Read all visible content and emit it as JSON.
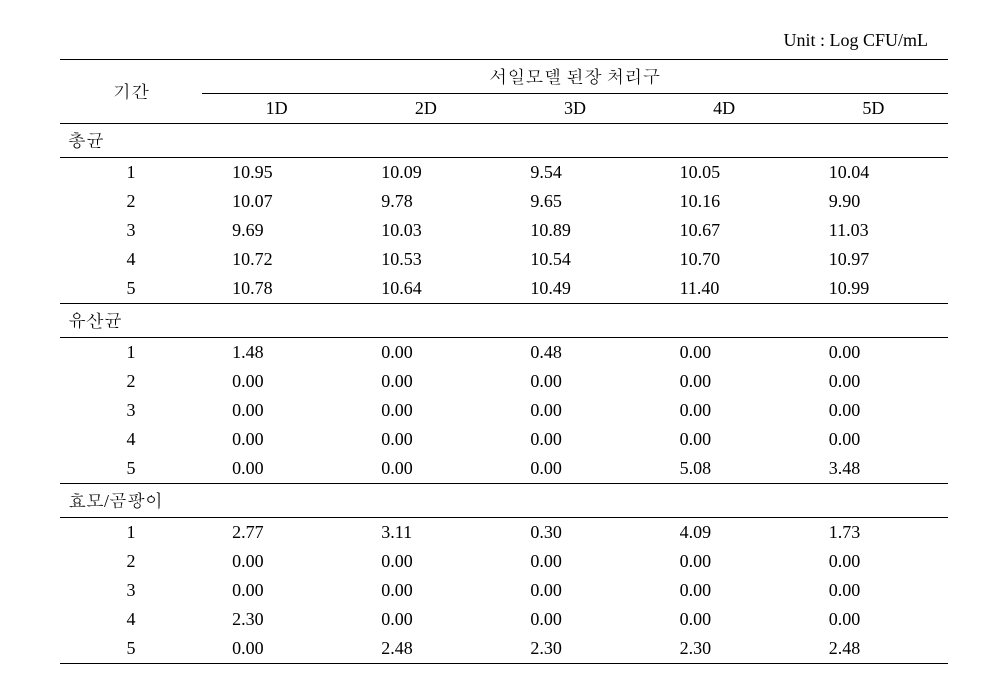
{
  "unit_label": "Unit : Log CFU/mL",
  "header": {
    "period": "기간",
    "group_header": "서일모델 된장 처리구",
    "cols": [
      "1D",
      "2D",
      "3D",
      "4D",
      "5D"
    ]
  },
  "sections": [
    {
      "name": "총균",
      "rows": [
        {
          "p": "1",
          "v": [
            "10.95",
            "10.09",
            "9.54",
            "10.05",
            "10.04"
          ]
        },
        {
          "p": "2",
          "v": [
            "10.07",
            "9.78",
            "9.65",
            "10.16",
            "9.90"
          ]
        },
        {
          "p": "3",
          "v": [
            "9.69",
            "10.03",
            "10.89",
            "10.67",
            "11.03"
          ]
        },
        {
          "p": "4",
          "v": [
            "10.72",
            "10.53",
            "10.54",
            "10.70",
            "10.97"
          ]
        },
        {
          "p": "5",
          "v": [
            "10.78",
            "10.64",
            "10.49",
            "11.40",
            "10.99"
          ]
        }
      ]
    },
    {
      "name": "유산균",
      "rows": [
        {
          "p": "1",
          "v": [
            "1.48",
            "0.00",
            "0.48",
            "0.00",
            "0.00"
          ]
        },
        {
          "p": "2",
          "v": [
            "0.00",
            "0.00",
            "0.00",
            "0.00",
            "0.00"
          ]
        },
        {
          "p": "3",
          "v": [
            "0.00",
            "0.00",
            "0.00",
            "0.00",
            "0.00"
          ]
        },
        {
          "p": "4",
          "v": [
            "0.00",
            "0.00",
            "0.00",
            "0.00",
            "0.00"
          ]
        },
        {
          "p": "5",
          "v": [
            "0.00",
            "0.00",
            "0.00",
            "5.08",
            "3.48"
          ]
        }
      ]
    },
    {
      "name": "효모/곰팡이",
      "rows": [
        {
          "p": "1",
          "v": [
            "2.77",
            "3.11",
            "0.30",
            "4.09",
            "1.73"
          ]
        },
        {
          "p": "2",
          "v": [
            "0.00",
            "0.00",
            "0.00",
            "0.00",
            "0.00"
          ]
        },
        {
          "p": "3",
          "v": [
            "0.00",
            "0.00",
            "0.00",
            "0.00",
            "0.00"
          ]
        },
        {
          "p": "4",
          "v": [
            "2.30",
            "0.00",
            "0.00",
            "0.00",
            "0.00"
          ]
        },
        {
          "p": "5",
          "v": [
            "0.00",
            "2.48",
            "2.30",
            "2.30",
            "2.48"
          ]
        }
      ]
    }
  ]
}
